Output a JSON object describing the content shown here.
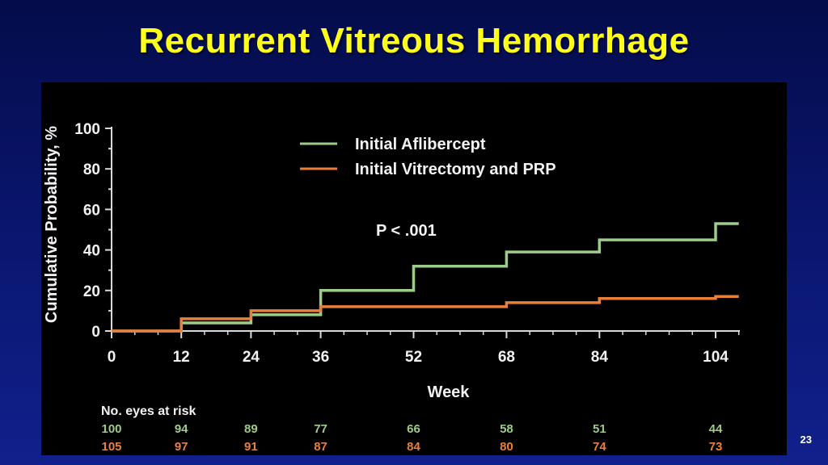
{
  "slide": {
    "title": "Recurrent Vitreous Hemorrhage",
    "page_number": "23"
  },
  "chart_data": {
    "type": "line",
    "step": true,
    "ylabel": "Cumulative Probability, %",
    "xlabel": "Week",
    "xlim": [
      0,
      104
    ],
    "ylim": [
      0,
      100
    ],
    "x_ticks": [
      0,
      12,
      24,
      36,
      52,
      68,
      84,
      104
    ],
    "y_ticks": [
      0,
      20,
      40,
      60,
      80,
      100
    ],
    "grid": false,
    "legend_position": "top-center",
    "annotation": "P < .001",
    "series": [
      {
        "name": "Initial Aflibercept",
        "color": "#9dcc8a",
        "points": [
          [
            0,
            0
          ],
          [
            12,
            0
          ],
          [
            12,
            4
          ],
          [
            24,
            4
          ],
          [
            24,
            8
          ],
          [
            36,
            8
          ],
          [
            36,
            20
          ],
          [
            52,
            20
          ],
          [
            52,
            32
          ],
          [
            68,
            32
          ],
          [
            68,
            39
          ],
          [
            84,
            39
          ],
          [
            84,
            45
          ],
          [
            104,
            45
          ],
          [
            104,
            53
          ],
          [
            108,
            53
          ]
        ]
      },
      {
        "name": "Initial Vitrectomy and PRP",
        "color": "#e8803c",
        "points": [
          [
            0,
            0
          ],
          [
            12,
            0
          ],
          [
            12,
            6
          ],
          [
            24,
            6
          ],
          [
            24,
            10
          ],
          [
            36,
            10
          ],
          [
            36,
            12
          ],
          [
            68,
            12
          ],
          [
            68,
            14
          ],
          [
            84,
            14
          ],
          [
            84,
            16
          ],
          [
            104,
            16
          ],
          [
            104,
            17
          ],
          [
            108,
            17
          ]
        ]
      }
    ],
    "risk_table": {
      "title": "No. eyes at risk",
      "weeks": [
        0,
        12,
        24,
        36,
        52,
        68,
        84,
        104
      ],
      "rows": [
        {
          "series": "Initial Aflibercept",
          "color": "#9dcc8a",
          "values": [
            "100",
            "94",
            "89",
            "77",
            "66",
            "58",
            "51",
            "44"
          ]
        },
        {
          "series": "Initial Vitrectomy and PRP",
          "color": "#e8803c",
          "values": [
            "105",
            "97",
            "91",
            "87",
            "84",
            "80",
            "74",
            "73"
          ]
        }
      ]
    }
  }
}
